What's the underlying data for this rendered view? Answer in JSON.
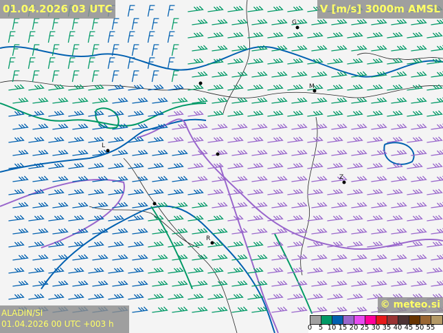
{
  "header": {
    "valid_time": "01.04.2026 03 UTC",
    "field": "V [m/s] 3000m AMSL"
  },
  "footer": {
    "model": "ALADIN/SI",
    "run": "01.04.2026 00 UTC +003 h",
    "copyright": "© meteo.si"
  },
  "legend": {
    "labels": [
      "0",
      "5",
      "10",
      "15",
      "20",
      "25",
      "30",
      "35",
      "40",
      "45",
      "50",
      "55"
    ],
    "colors": [
      "#a0a0a0",
      "#009966",
      "#0060b0",
      "#9966cc",
      "#e64cf0",
      "#ff0099",
      "#e61a1a",
      "#993333",
      "#4d3333",
      "#663300",
      "#996633",
      "#b39966"
    ]
  },
  "cities": [
    {
      "label": "G"
    },
    {
      "label": "M"
    },
    {
      "label": "Z"
    },
    {
      "label": "R"
    },
    {
      "label": "L"
    }
  ]
}
